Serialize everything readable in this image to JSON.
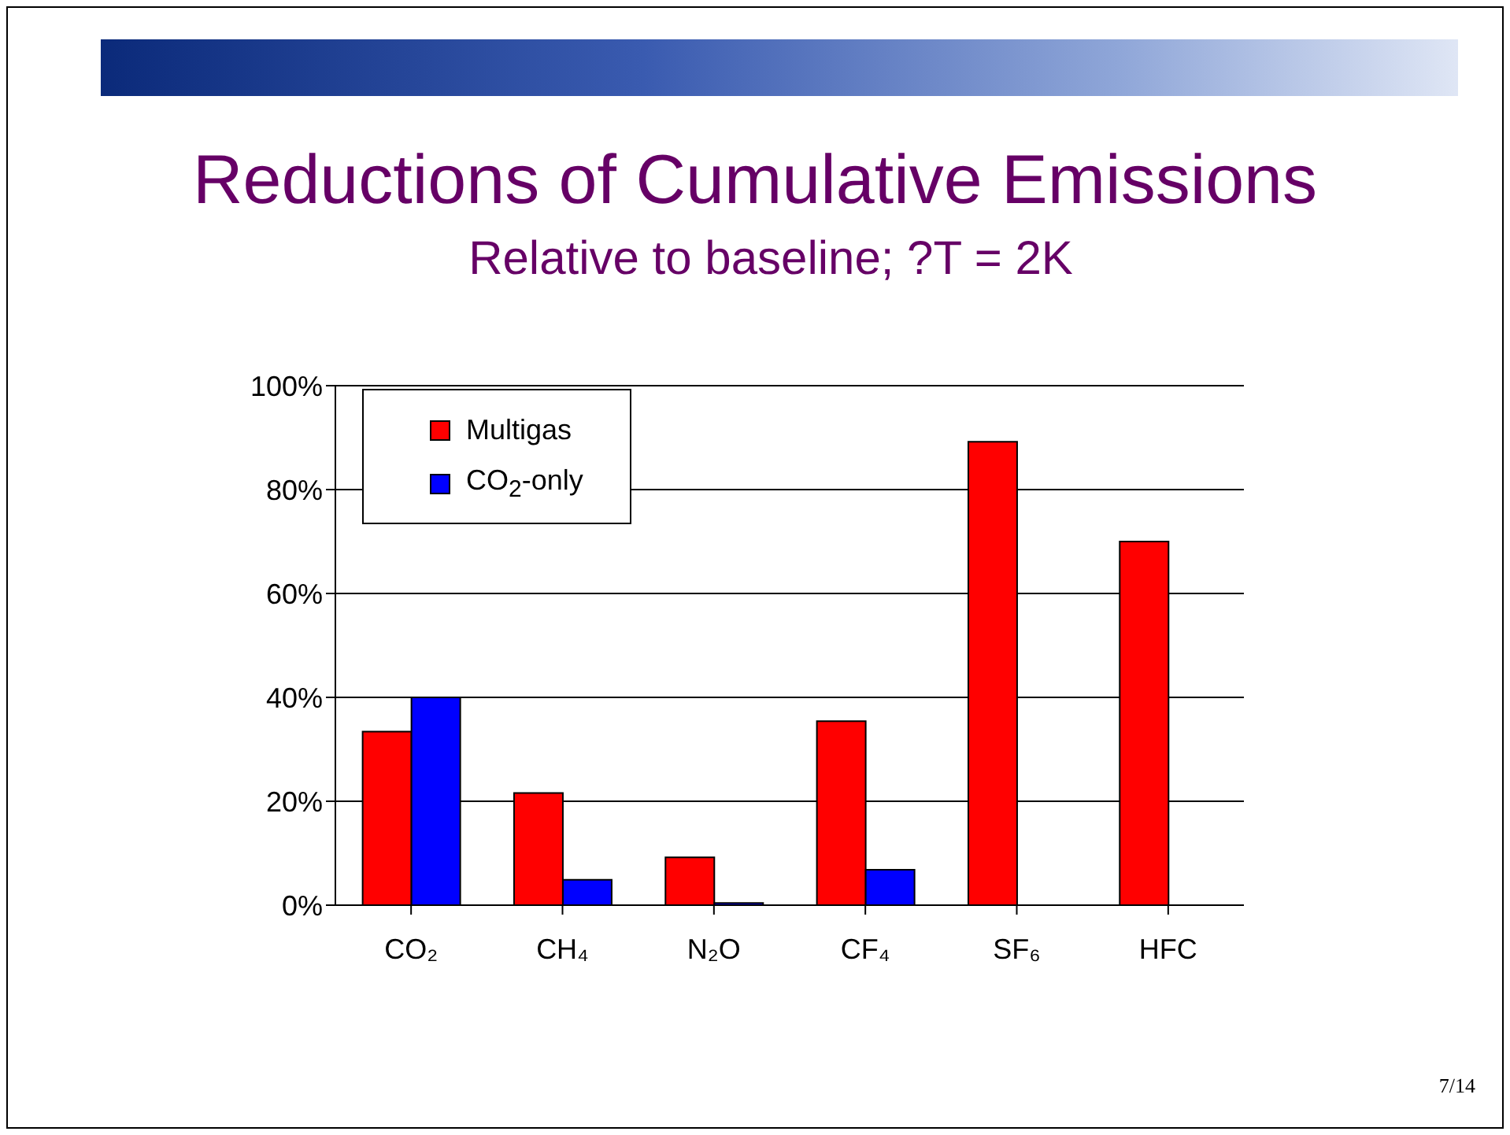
{
  "chart_data": {
    "type": "bar",
    "title": "Reductions of Cumulative Emissions",
    "subtitle": "Relative to baseline; ?T = 2K",
    "categories": [
      "CO₂",
      "CH₄",
      "N₂O",
      "CF₄",
      "SF₆",
      "HFC"
    ],
    "series": [
      {
        "name": "Multigas",
        "color": "#ff0000",
        "values": [
          33.4,
          21.6,
          9.2,
          35.4,
          89.2,
          70.0
        ]
      },
      {
        "name": "CO$_{2}$-only",
        "color": "#0000ff",
        "values": [
          40,
          4.9,
          0.4,
          6.8,
          null,
          null
        ]
      }
    ],
    "ylim": [
      0,
      100
    ],
    "yticks": [
      {
        "value": 0,
        "label": "0%"
      },
      {
        "value": 20,
        "label": "20%"
      },
      {
        "value": 40,
        "label": "40%"
      },
      {
        "value": 60,
        "label": "60%"
      },
      {
        "value": 80,
        "label": "80%"
      },
      {
        "value": 100,
        "label": "100%"
      }
    ],
    "grid": "y",
    "legend": "top left",
    "annotations": [
      "7/14"
    ]
  }
}
